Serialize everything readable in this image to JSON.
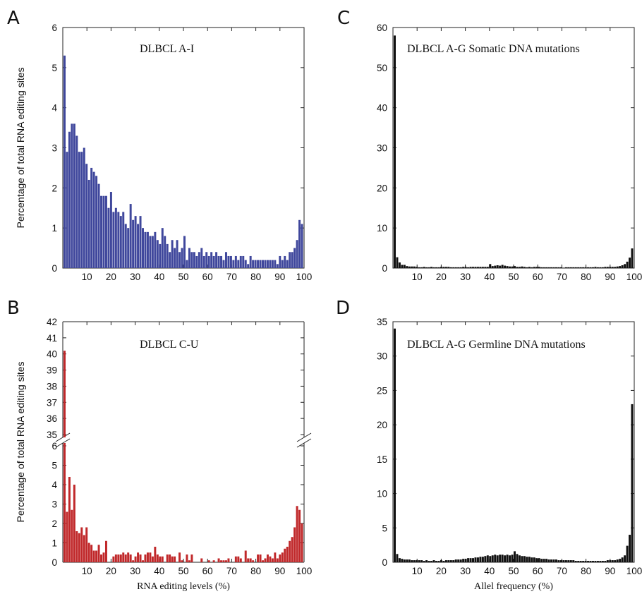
{
  "chart_data": [
    {
      "type": "bar",
      "panel": "A",
      "title": "DLBCL A-I",
      "xlabel": "",
      "ylabel": "Percentage of total RNA editing sites",
      "xlim": [
        0,
        100
      ],
      "ylim": [
        0,
        6
      ],
      "x_ticks": [
        10,
        20,
        30,
        40,
        50,
        60,
        70,
        80,
        90,
        100
      ],
      "y_ticks": [
        0,
        1,
        2,
        3,
        4,
        5,
        6
      ],
      "color": "#3f479c",
      "values": [
        5.3,
        2.9,
        3.4,
        3.6,
        3.6,
        3.3,
        2.9,
        2.9,
        3.0,
        2.6,
        2.2,
        2.5,
        2.4,
        2.3,
        2.1,
        1.8,
        1.8,
        1.8,
        1.5,
        1.9,
        1.4,
        1.5,
        1.4,
        1.3,
        1.4,
        1.1,
        1.0,
        1.6,
        1.2,
        1.3,
        1.1,
        1.3,
        1.0,
        0.9,
        0.9,
        0.8,
        0.8,
        0.9,
        0.7,
        0.6,
        1.0,
        0.8,
        0.6,
        0.4,
        0.7,
        0.5,
        0.7,
        0.4,
        0.5,
        0.8,
        0.2,
        0.5,
        0.4,
        0.4,
        0.3,
        0.4,
        0.5,
        0.3,
        0.4,
        0.3,
        0.4,
        0.3,
        0.4,
        0.3,
        0.3,
        0.2,
        0.4,
        0.3,
        0.3,
        0.2,
        0.3,
        0.2,
        0.3,
        0.3,
        0.2,
        0.1,
        0.3,
        0.2,
        0.2,
        0.2,
        0.2,
        0.2,
        0.2,
        0.2,
        0.2,
        0.2,
        0.2,
        0.1,
        0.3,
        0.2,
        0.3,
        0.2,
        0.4,
        0.4,
        0.5,
        0.7,
        1.2,
        1.1
      ]
    },
    {
      "type": "bar",
      "panel": "B",
      "title": "DLBCL C-U",
      "xlabel": "RNA editing levels (%)",
      "ylabel": "Percentage of total RNA editing sites",
      "xlim": [
        0,
        100
      ],
      "ylim_lower": [
        0,
        6
      ],
      "ylim_upper": [
        35,
        42
      ],
      "axis_break": true,
      "x_ticks": [
        10,
        20,
        30,
        40,
        50,
        60,
        70,
        80,
        90,
        100
      ],
      "y_ticks_lower": [
        0,
        1,
        2,
        3,
        4,
        5,
        6
      ],
      "y_ticks_upper": [
        35,
        36,
        37,
        38,
        39,
        40,
        41,
        42
      ],
      "color": "#c0282a",
      "values": [
        40.2,
        2.6,
        4.4,
        2.7,
        4.0,
        1.6,
        1.5,
        1.8,
        1.4,
        1.8,
        1.0,
        0.9,
        0.6,
        0.6,
        0.9,
        0.4,
        0.5,
        1.1,
        0.0,
        0.0,
        0.3,
        0.4,
        0.4,
        0.4,
        0.5,
        0.4,
        0.5,
        0.4,
        0.1,
        0.3,
        0.5,
        0.4,
        0.1,
        0.4,
        0.5,
        0.5,
        0.3,
        0.8,
        0.4,
        0.3,
        0.3,
        0.0,
        0.4,
        0.4,
        0.3,
        0.3,
        0.0,
        0.5,
        0.1,
        0.0,
        0.4,
        0.1,
        0.4,
        0.0,
        0.0,
        0.0,
        0.2,
        0.0,
        0.0,
        0.1,
        0.0,
        0.1,
        0.0,
        0.2,
        0.1,
        0.1,
        0.1,
        0.2,
        0.0,
        0.0,
        0.3,
        0.3,
        0.2,
        0.0,
        0.6,
        0.2,
        0.2,
        0.1,
        0.0,
        0.4,
        0.4,
        0.1,
        0.2,
        0.4,
        0.3,
        0.2,
        0.5,
        0.2,
        0.4,
        0.5,
        0.7,
        0.8,
        1.1,
        1.3,
        1.8,
        2.9,
        2.7,
        2.0
      ]
    },
    {
      "type": "bar",
      "panel": "C",
      "title": "DLBCL A-G Somatic DNA mutations",
      "xlabel": "",
      "ylabel": "",
      "xlim": [
        0,
        100
      ],
      "ylim": [
        0,
        60
      ],
      "x_ticks": [
        10,
        20,
        30,
        40,
        50,
        60,
        70,
        80,
        90,
        100
      ],
      "y_ticks": [
        0,
        10,
        20,
        30,
        40,
        50,
        60
      ],
      "color": "#111111",
      "values": [
        58.0,
        2.7,
        1.4,
        0.8,
        0.8,
        0.5,
        0.4,
        0.4,
        0.4,
        0.3,
        0.2,
        0.2,
        0.3,
        0.2,
        0.2,
        0.3,
        0.2,
        0.2,
        0.2,
        0.3,
        0.3,
        0.3,
        0.3,
        0.2,
        0.2,
        0.2,
        0.2,
        0.2,
        0.3,
        0.3,
        0.2,
        0.3,
        0.3,
        0.3,
        0.3,
        0.3,
        0.3,
        0.3,
        0.3,
        1.0,
        0.5,
        0.6,
        0.7,
        0.6,
        0.8,
        0.6,
        0.5,
        0.4,
        0.4,
        0.5,
        0.3,
        0.3,
        0.4,
        0.3,
        0.2,
        0.3,
        0.2,
        0.3,
        0.3,
        0.3,
        0.2,
        0.2,
        0.2,
        0.2,
        0.2,
        0.2,
        0.2,
        0.2,
        0.2,
        0.1,
        0.2,
        0.2,
        0.2,
        0.2,
        0.2,
        0.2,
        0.2,
        0.2,
        0.2,
        0.2,
        0.2,
        0.2,
        0.3,
        0.2,
        0.2,
        0.2,
        0.3,
        0.3,
        0.3,
        0.3,
        0.3,
        0.4,
        0.5,
        0.7,
        1.0,
        1.6,
        2.6,
        4.9
      ]
    },
    {
      "type": "bar",
      "panel": "D",
      "title": "DLBCL A-G Germline DNA mutations",
      "xlabel": "Allel frequency (%)",
      "ylabel": "",
      "xlim": [
        0,
        100
      ],
      "ylim": [
        0,
        35
      ],
      "x_ticks": [
        10,
        20,
        30,
        40,
        50,
        60,
        70,
        80,
        90,
        100
      ],
      "y_ticks": [
        0,
        5,
        10,
        15,
        20,
        25,
        30,
        35
      ],
      "color": "#111111",
      "values": [
        34.0,
        1.2,
        0.6,
        0.5,
        0.4,
        0.4,
        0.4,
        0.3,
        0.3,
        0.3,
        0.3,
        0.3,
        0.2,
        0.3,
        0.2,
        0.2,
        0.3,
        0.2,
        0.2,
        0.3,
        0.2,
        0.3,
        0.3,
        0.3,
        0.3,
        0.4,
        0.4,
        0.4,
        0.5,
        0.5,
        0.6,
        0.6,
        0.6,
        0.7,
        0.7,
        0.8,
        0.8,
        0.9,
        1.0,
        0.9,
        1.0,
        1.1,
        1.0,
        1.1,
        1.1,
        1.0,
        1.1,
        1.0,
        1.1,
        1.6,
        1.2,
        1.0,
        0.9,
        0.9,
        0.8,
        0.8,
        0.7,
        0.7,
        0.6,
        0.6,
        0.5,
        0.5,
        0.5,
        0.4,
        0.4,
        0.4,
        0.4,
        0.3,
        0.3,
        0.3,
        0.3,
        0.3,
        0.3,
        0.3,
        0.2,
        0.2,
        0.2,
        0.2,
        0.2,
        0.2,
        0.2,
        0.2,
        0.2,
        0.2,
        0.2,
        0.2,
        0.2,
        0.3,
        0.3,
        0.3,
        0.3,
        0.4,
        0.5,
        0.7,
        1.0,
        2.4,
        4.0,
        23.0
      ]
    }
  ]
}
